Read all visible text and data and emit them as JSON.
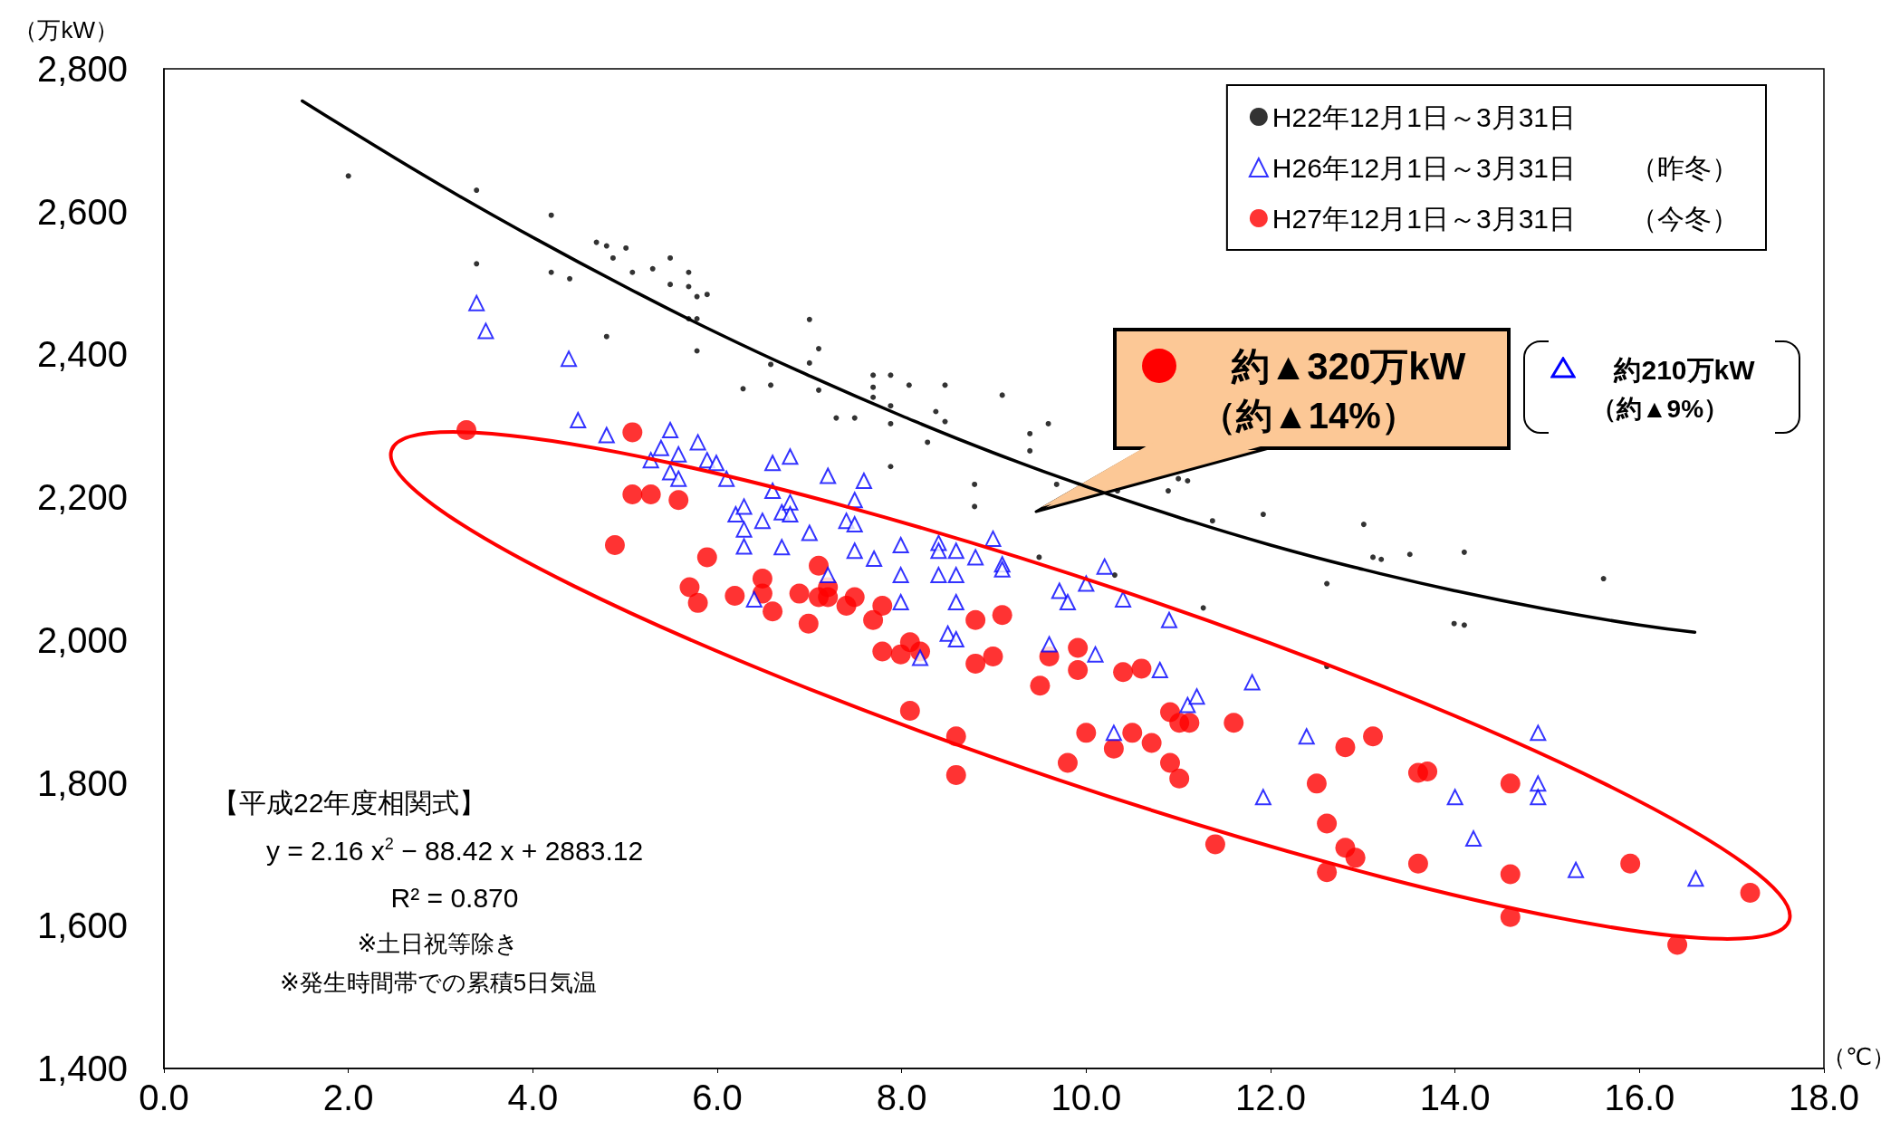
{
  "chart_data": {
    "type": "scatter",
    "xlabel": "（℃）",
    "ylabel": "（万kW）",
    "xlim": [
      0,
      18
    ],
    "xticks": [
      {
        "value": 0,
        "label": "0.0"
      },
      {
        "value": 2,
        "label": "2.0"
      },
      {
        "value": 4,
        "label": "4.0"
      },
      {
        "value": 6,
        "label": "6.0"
      },
      {
        "value": 8,
        "label": "8.0"
      },
      {
        "value": 10,
        "label": "10.0"
      },
      {
        "value": 12,
        "label": "12.0"
      },
      {
        "value": 14,
        "label": "14.0"
      },
      {
        "value": 16,
        "label": "16.0"
      },
      {
        "value": 18,
        "label": "18.0"
      }
    ],
    "ylim": [
      1400,
      2800
    ],
    "yticks": [
      {
        "value": 1400,
        "label": "1,400"
      },
      {
        "value": 1600,
        "label": "1,600"
      },
      {
        "value": 1800,
        "label": "1,800"
      },
      {
        "value": 2000,
        "label": "2,000"
      },
      {
        "value": 2200,
        "label": "2,200"
      },
      {
        "value": 2400,
        "label": "2,400"
      },
      {
        "value": 2600,
        "label": "2,600"
      },
      {
        "value": 2800,
        "label": "2,800"
      }
    ],
    "grid": false,
    "legend": "top right",
    "series": [
      {
        "name": "H22年12月1日～3月31日",
        "marker": "circle",
        "color": "#000000",
        "x": [
          2.0,
          3.39,
          3.39,
          4.2,
          4.2,
          4.4,
          4.69,
          4.8,
          4.87,
          5.01,
          4.8,
          5.08,
          5.3,
          5.49,
          5.49,
          5.69,
          5.69,
          5.78,
          5.89,
          5.69,
          5.78,
          5.78,
          6.28,
          6.58,
          6.58,
          7.0,
          7.0,
          7.1,
          7.1,
          7.29,
          7.49,
          7.69,
          7.69,
          7.69,
          7.88,
          7.88,
          7.88,
          8.08,
          7.88,
          8.37,
          8.47,
          8.47,
          8.28,
          8.79,
          8.79,
          9.09,
          9.39,
          9.39,
          9.59,
          9.49,
          9.68,
          10.31,
          10.34,
          10.89,
          11.0,
          11.1,
          11.37,
          11.92,
          12.61,
          12.61,
          13.01,
          13.11,
          13.2,
          13.51,
          13.99,
          14.1,
          14.1,
          15.61,
          11.27
        ],
        "values": [
          2650,
          2630,
          2527,
          2595,
          2515,
          2506,
          2557,
          2552,
          2535,
          2549,
          2425,
          2515,
          2520,
          2535,
          2498,
          2515,
          2495,
          2481,
          2484,
          2450,
          2450,
          2405,
          2352,
          2386,
          2357,
          2449,
          2388,
          2408,
          2350,
          2311,
          2311,
          2371,
          2354,
          2340,
          2371,
          2328,
          2303,
          2357,
          2243,
          2320,
          2357,
          2306,
          2277,
          2218,
          2187,
          2343,
          2289,
          2265,
          2303,
          2116,
          2218,
          2091,
          2209,
          2209,
          2226,
          2223,
          2167,
          2176,
          2079,
          1963,
          2162,
          2116,
          2113,
          2120,
          2023,
          2021,
          2123,
          2086,
          2045
        ]
      },
      {
        "name": "H26年12月1日～3月31日　　（昨冬）",
        "marker": "triangle",
        "color": "#0000ff",
        "x": [
          3.39,
          3.49,
          4.39,
          4.49,
          4.8,
          5.28,
          5.39,
          5.49,
          5.49,
          5.58,
          5.58,
          5.79,
          5.89,
          5.99,
          6.1,
          6.2,
          6.29,
          6.29,
          6.29,
          6.4,
          6.49,
          6.6,
          6.6,
          6.7,
          6.7,
          6.79,
          6.79,
          6.79,
          7.0,
          7.2,
          7.2,
          7.4,
          7.49,
          7.49,
          7.49,
          7.59,
          7.7,
          7.99,
          7.99,
          7.99,
          8.2,
          8.4,
          8.4,
          8.4,
          8.5,
          8.59,
          8.59,
          8.59,
          8.59,
          8.8,
          8.99,
          9.09,
          9.09,
          9.6,
          9.71,
          9.8,
          10.0,
          10.1,
          10.2,
          10.3,
          10.4,
          10.8,
          10.9,
          11.1,
          11.2,
          11.8,
          11.92,
          12.39,
          14.0,
          14.2,
          14.9,
          14.9,
          14.9,
          15.31,
          16.61
        ],
        "values": [
          2472,
          2433,
          2394,
          2308,
          2287,
          2252,
          2269,
          2294,
          2235,
          2260,
          2226,
          2277,
          2252,
          2248,
          2226,
          2176,
          2187,
          2155,
          2131,
          2057,
          2167,
          2248,
          2209,
          2179,
          2130,
          2257,
          2193,
          2176,
          2150,
          2230,
          2091,
          2167,
          2196,
          2162,
          2125,
          2223,
          2114,
          2133,
          2091,
          2053,
          1975,
          2136,
          2125,
          2091,
          2009,
          2125,
          2091,
          2053,
          2001,
          2116,
          2142,
          2106,
          2099,
          1994,
          2069,
          2053,
          2079,
          1980,
          2103,
          1870,
          2057,
          1958,
          2028,
          1909,
          1921,
          1941,
          1780,
          1865,
          1780,
          1722,
          1870,
          1799,
          1780,
          1678,
          1666
        ]
      },
      {
        "name": "H27年12月1日～3月31日　　（今冬）",
        "marker": "circle",
        "color": "#ff0000",
        "x": [
          3.28,
          4.89,
          5.08,
          5.08,
          5.28,
          5.58,
          5.7,
          5.79,
          5.89,
          6.19,
          6.49,
          6.49,
          6.6,
          6.89,
          6.99,
          7.1,
          7.1,
          7.2,
          7.2,
          7.4,
          7.49,
          7.69,
          7.79,
          7.79,
          7.99,
          8.09,
          8.09,
          8.2,
          8.59,
          8.59,
          8.8,
          8.8,
          8.99,
          9.09,
          9.5,
          9.6,
          9.8,
          9.91,
          9.91,
          10.0,
          10.3,
          10.4,
          10.5,
          10.6,
          10.71,
          10.91,
          10.91,
          11.01,
          11.01,
          11.12,
          11.4,
          11.6,
          12.5,
          12.61,
          12.61,
          12.81,
          12.81,
          12.92,
          13.11,
          13.6,
          13.7,
          13.6,
          14.6,
          14.6,
          14.6,
          15.9,
          16.41,
          17.2
        ],
        "values": [
          2294,
          2133,
          2291,
          2204,
          2204,
          2196,
          2074,
          2052,
          2116,
          2062,
          2086,
          2065,
          2040,
          2065,
          2023,
          2104,
          2060,
          2074,
          2060,
          2048,
          2060,
          2028,
          2048,
          1984,
          1980,
          1997,
          1901,
          1984,
          1865,
          1811,
          2028,
          1967,
          1977,
          2035,
          1936,
          1977,
          1828,
          1989,
          1958,
          1870,
          1848,
          1955,
          1870,
          1960,
          1856,
          1899,
          1828,
          1884,
          1806,
          1884,
          1714,
          1884,
          1799,
          1743,
          1675,
          1850,
          1709,
          1695,
          1865,
          1814,
          1816,
          1687,
          1799,
          1672,
          1612,
          1687,
          1573,
          1646
        ]
      },
      {
        "type": "line",
        "marker": "none",
        "line_style": "solid",
        "color": "#000000",
        "x": [
          1.5,
          2,
          3,
          4,
          5,
          6,
          7,
          8,
          9,
          10,
          11,
          12,
          13,
          14,
          15,
          16,
          16.6
        ],
        "values": [
          2755,
          2715,
          2637,
          2564,
          2495,
          2430,
          2370,
          2314,
          2262,
          2215,
          2172,
          2133,
          2099,
          2069,
          2043,
          2021,
          2011
        ]
      }
    ],
    "annotations": [
      "【平成22年度相関式】",
      "y = 2.16 x$^{2}$ − 88.42 x + 2883.12",
      "R² = 0.870",
      "※土日祝等除き",
      "※発生時間帯での累積5日気温",
      "約▲320万kW",
      "（約▲14%）",
      "約210万kW",
      "（約▲9%）"
    ]
  }
}
